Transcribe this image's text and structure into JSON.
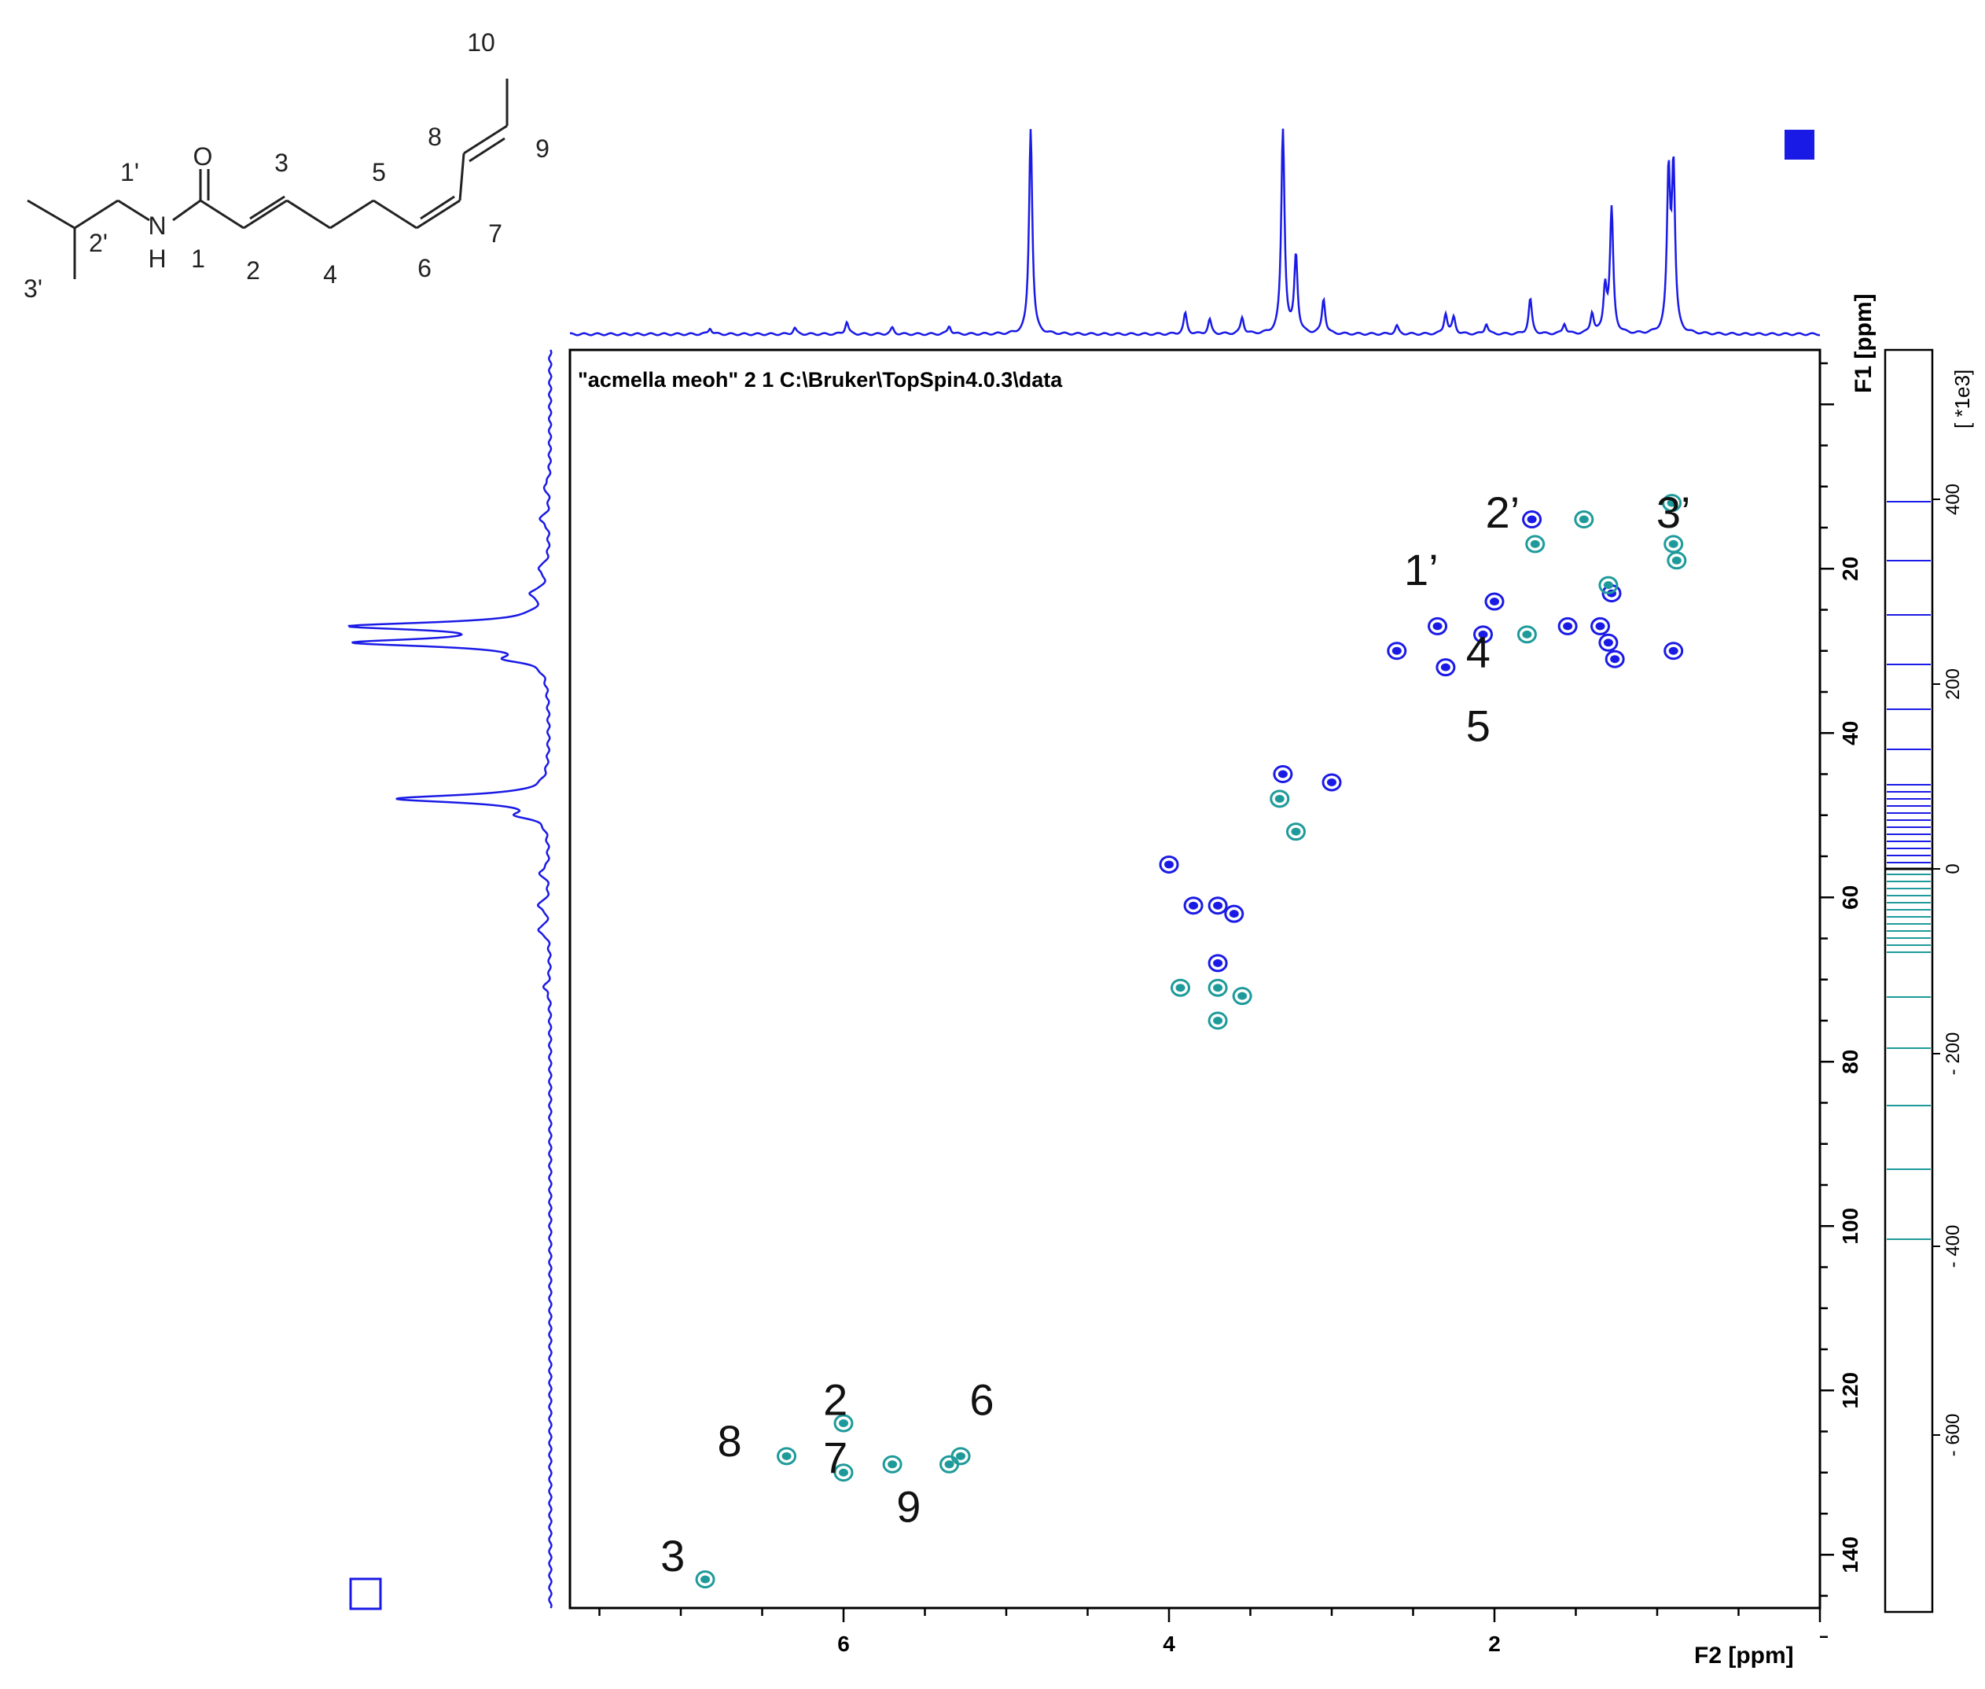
{
  "chart_data": {
    "type": "heatmap",
    "subtype": "2D NMR HSQC contour plot",
    "title": "\"acmella meoh\"  2  1  C:\\Bruker\\TopSpin4.0.3\\data",
    "xlabel": "F2 [ppm]",
    "ylabel": "F1 [ppm]",
    "xlim": [
      7.5,
      0
    ],
    "ylim": [
      -5,
      150
    ],
    "x_ticks": [
      "6",
      "4",
      "2"
    ],
    "y_ticks": [
      "20",
      "40",
      "60",
      "80",
      "100",
      "120",
      "140"
    ],
    "colorbar": {
      "label": "[ *1e3]",
      "ticks": [
        "400",
        "200",
        "0",
        "- 200",
        "- 400",
        "- 600"
      ],
      "positive_color": "#1a1ae6",
      "negative_color": "#1e9a9a",
      "positive_levels": 23,
      "negative_levels": 26
    },
    "peak_labels": [
      {
        "text": "1’",
        "x": 2.45,
        "y": 22
      },
      {
        "text": "2’",
        "x": 1.95,
        "y": 15
      },
      {
        "text": "3’",
        "x": 0.9,
        "y": 15
      },
      {
        "text": "4",
        "x": 2.1,
        "y": 32
      },
      {
        "text": "5",
        "x": 2.1,
        "y": 41
      },
      {
        "text": "2",
        "x": 6.05,
        "y": 123
      },
      {
        "text": "6",
        "x": 5.15,
        "y": 123
      },
      {
        "text": "8",
        "x": 6.7,
        "y": 128
      },
      {
        "text": "7",
        "x": 6.05,
        "y": 130
      },
      {
        "text": "9",
        "x": 5.6,
        "y": 136
      },
      {
        "text": "3",
        "x": 7.05,
        "y": 142
      }
    ],
    "cross_peaks_positive": [
      [
        2.35,
        27
      ],
      [
        2.3,
        32
      ],
      [
        2.07,
        28
      ],
      [
        2.0,
        24
      ],
      [
        1.77,
        14
      ],
      [
        1.3,
        29
      ],
      [
        1.26,
        31
      ],
      [
        1.35,
        27
      ],
      [
        1.28,
        23
      ],
      [
        1.55,
        27
      ],
      [
        2.6,
        30
      ],
      [
        0.9,
        30
      ],
      [
        3.3,
        45
      ],
      [
        3.0,
        46
      ],
      [
        4.0,
        56
      ],
      [
        3.6,
        62
      ],
      [
        3.7,
        61
      ],
      [
        3.85,
        61
      ],
      [
        3.7,
        68
      ]
    ],
    "cross_peaks_negative": [
      [
        1.75,
        17
      ],
      [
        1.8,
        28
      ],
      [
        1.45,
        14
      ],
      [
        1.3,
        22
      ],
      [
        0.88,
        19
      ],
      [
        0.9,
        17
      ],
      [
        0.91,
        12
      ],
      [
        3.32,
        48
      ],
      [
        3.22,
        52
      ],
      [
        3.93,
        71
      ],
      [
        3.7,
        71
      ],
      [
        3.55,
        72
      ],
      [
        3.7,
        75
      ],
      [
        6.0,
        124
      ],
      [
        6.0,
        130
      ],
      [
        6.35,
        128
      ],
      [
        5.7,
        129
      ],
      [
        5.35,
        129
      ],
      [
        5.28,
        128
      ],
      [
        6.85,
        143
      ]
    ],
    "proton_projection_peaks": [
      {
        "ppm": 4.85,
        "height": 1.0
      },
      {
        "ppm": 3.3,
        "height": 1.0
      },
      {
        "ppm": 3.22,
        "height": 0.38
      },
      {
        "ppm": 3.05,
        "height": 0.17
      },
      {
        "ppm": 3.9,
        "height": 0.1
      },
      {
        "ppm": 2.3,
        "height": 0.1
      },
      {
        "ppm": 2.25,
        "height": 0.08
      },
      {
        "ppm": 1.78,
        "height": 0.17
      },
      {
        "ppm": 1.57,
        "height": 0.05
      },
      {
        "ppm": 1.32,
        "height": 0.22
      },
      {
        "ppm": 1.28,
        "height": 0.6
      },
      {
        "ppm": 1.4,
        "height": 0.1
      },
      {
        "ppm": 0.93,
        "height": 0.75
      },
      {
        "ppm": 0.9,
        "height": 0.78
      },
      {
        "ppm": 5.98,
        "height": 0.06
      },
      {
        "ppm": 6.3,
        "height": 0.03
      },
      {
        "ppm": 5.7,
        "height": 0.03
      },
      {
        "ppm": 6.82,
        "height": 0.03
      },
      {
        "ppm": 5.35,
        "height": 0.04
      },
      {
        "ppm": 3.75,
        "height": 0.07
      },
      {
        "ppm": 3.55,
        "height": 0.08
      },
      {
        "ppm": 2.05,
        "height": 0.05
      },
      {
        "ppm": 2.6,
        "height": 0.04
      }
    ],
    "carbon_projection_peaks": [
      {
        "ppm": 27,
        "height": 0.92
      },
      {
        "ppm": 29,
        "height": 0.9
      },
      {
        "ppm": 31,
        "height": 0.15
      },
      {
        "ppm": 23,
        "height": 0.08
      },
      {
        "ppm": 20,
        "height": 0.05
      },
      {
        "ppm": 14,
        "height": 0.05
      },
      {
        "ppm": 48,
        "height": 0.75
      },
      {
        "ppm": 50,
        "height": 0.12
      },
      {
        "ppm": 57,
        "height": 0.05
      },
      {
        "ppm": 61,
        "height": 0.06
      },
      {
        "ppm": 64,
        "height": 0.06
      },
      {
        "ppm": 71,
        "height": 0.03
      },
      {
        "ppm": 10,
        "height": 0.03
      }
    ]
  },
  "structure": {
    "atom_labels": [
      {
        "text": "10"
      },
      {
        "text": "8"
      },
      {
        "text": "9"
      },
      {
        "text": "O"
      },
      {
        "text": "3"
      },
      {
        "text": "5"
      },
      {
        "text": "1'"
      },
      {
        "text": "N"
      },
      {
        "text": "H"
      },
      {
        "text": "2'"
      },
      {
        "text": "1"
      },
      {
        "text": "2"
      },
      {
        "text": "4"
      },
      {
        "text": "6"
      },
      {
        "text": "7"
      },
      {
        "text": "3'"
      }
    ]
  },
  "colors": {
    "axis": "#000000",
    "projection": "#1a1ae6",
    "positive": "#1a1ae6",
    "negative": "#1e9a9a"
  }
}
